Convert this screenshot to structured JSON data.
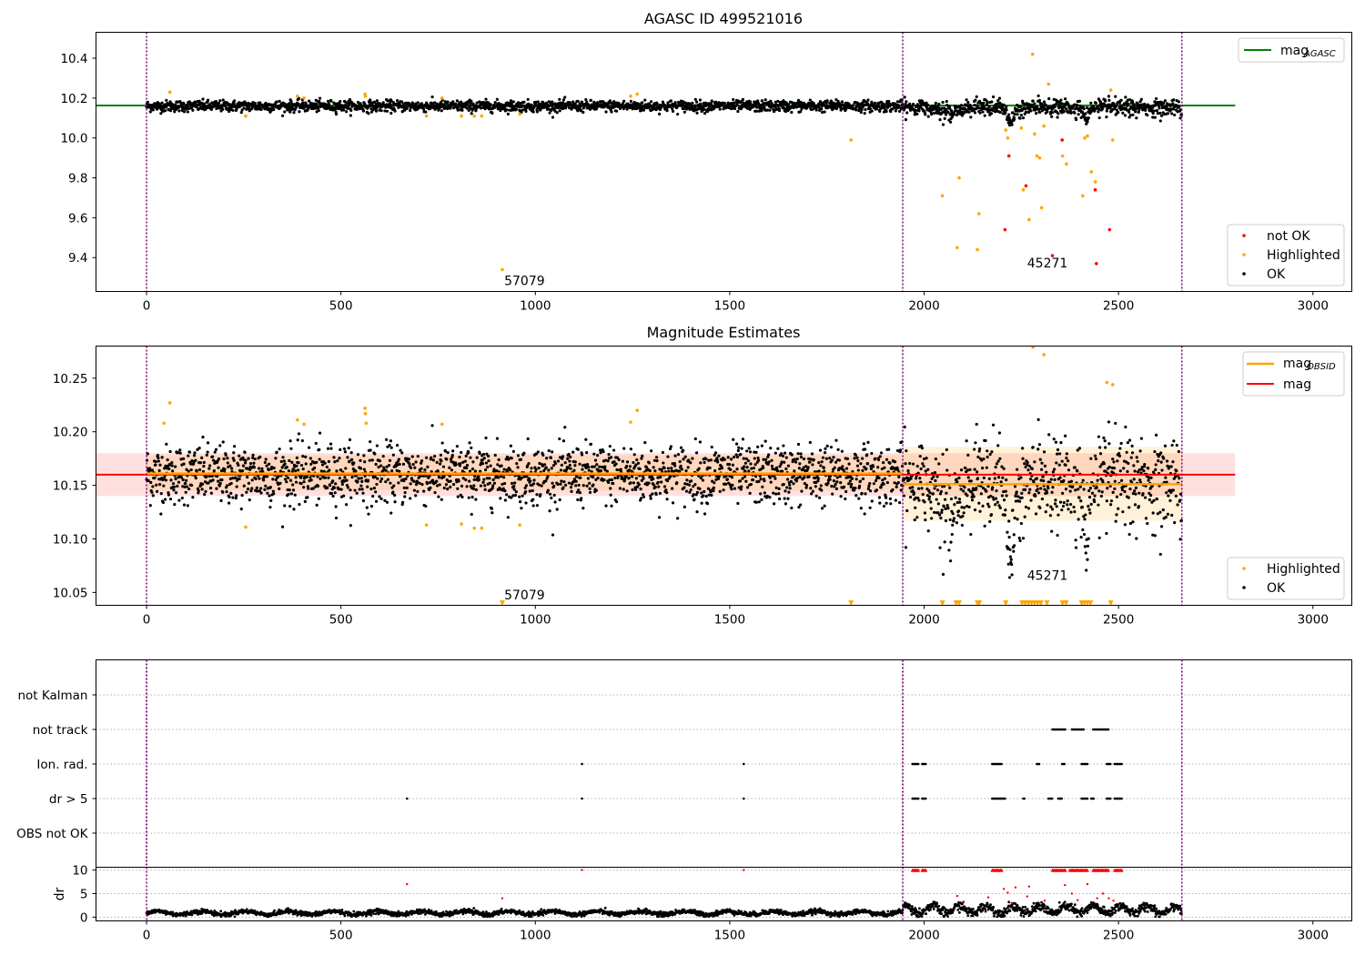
{
  "chart_data": [
    {
      "type": "scatter",
      "title": "AGASC ID 499521016",
      "xlim": [
        -130,
        3100
      ],
      "ylim": [
        9.23,
        10.53
      ],
      "x_ticks": [
        0,
        500,
        1000,
        1500,
        2000,
        2500,
        3000
      ],
      "y_ticks": [
        9.4,
        9.6,
        9.8,
        10.0,
        10.2,
        10.4
      ],
      "obsid_boundaries": [
        0,
        1945,
        2663
      ],
      "grid": false,
      "legend": {
        "position": "top-right",
        "line_entries": [
          {
            "label": "mag",
            "subscript": "AGASC",
            "color": "#008000"
          }
        ]
      },
      "legend_lower": {
        "position": "bottom-right",
        "entries": [
          {
            "label": "not OK",
            "color": "#ff0000"
          },
          {
            "label": "Highlighted",
            "color": "#ffa500"
          },
          {
            "label": "OK",
            "color": "#000000"
          }
        ]
      },
      "series": [
        {
          "name": "mag",
          "subscript": "AGASC",
          "style": "line",
          "color": "#008000",
          "x": [
            -130,
            2800
          ],
          "y": [
            10.163,
            10.163
          ]
        },
        {
          "name": "OK",
          "style": "points",
          "color": "#000000",
          "note": "dense band around 10.16 from x=0 to 2663 (~2600 points)"
        },
        {
          "name": "Highlighted",
          "style": "points",
          "color": "#ffa500",
          "x": [
            60,
            255,
            388,
            405,
            562,
            563,
            720,
            760,
            810,
            843,
            862,
            915,
            960,
            1245,
            1262,
            1812,
            2047,
            2085,
            2090,
            2137,
            2141,
            2210,
            2215,
            2250,
            2255,
            2270,
            2279,
            2284,
            2290,
            2297,
            2302,
            2308,
            2320,
            2356,
            2366,
            2408,
            2413,
            2420,
            2430,
            2440,
            2480,
            2485
          ],
          "y": [
            10.23,
            10.11,
            10.21,
            10.2,
            10.22,
            10.21,
            10.11,
            10.2,
            10.11,
            10.11,
            10.11,
            9.34,
            10.12,
            10.21,
            10.22,
            9.99,
            9.71,
            9.45,
            9.8,
            9.44,
            9.62,
            10.04,
            10.0,
            10.05,
            9.74,
            9.59,
            10.42,
            10.02,
            9.91,
            9.9,
            9.65,
            10.06,
            10.27,
            9.91,
            9.87,
            9.71,
            10.0,
            10.01,
            9.83,
            9.78,
            10.24,
            9.99
          ]
        },
        {
          "name": "not OK",
          "style": "points",
          "color": "#ff0000",
          "x": [
            2208,
            2218,
            2262,
            2330,
            2355,
            2440,
            2443,
            2477
          ],
          "y": [
            9.54,
            9.91,
            9.76,
            9.41,
            9.99,
            9.74,
            9.37,
            9.54
          ]
        }
      ],
      "annotations": [
        {
          "text": "57079",
          "x": 920,
          "y": 9.28
        },
        {
          "text": "45271",
          "x": 2265,
          "y": 9.37
        }
      ]
    },
    {
      "type": "scatter",
      "title": "Magnitude Estimates",
      "xlim": [
        -130,
        3100
      ],
      "ylim": [
        10.038,
        10.28
      ],
      "x_ticks": [
        0,
        500,
        1000,
        1500,
        2000,
        2500,
        3000
      ],
      "y_ticks": [
        10.05,
        10.1,
        10.15,
        10.2,
        10.25
      ],
      "obsid_boundaries": [
        0,
        1945,
        2663
      ],
      "grid": false,
      "legend": {
        "position": "top-right",
        "line_entries": [
          {
            "label": "mag",
            "subscript": "OBSID",
            "color": "#ffa500"
          },
          {
            "label": "mag",
            "subscript": "",
            "color": "#ff0000"
          }
        ]
      },
      "legend_lower": {
        "position": "bottom-right",
        "entries": [
          {
            "label": "Highlighted",
            "color": "#ffa500"
          },
          {
            "label": "OK",
            "color": "#000000"
          }
        ]
      },
      "bands": [
        {
          "x": [
            -130,
            2800
          ],
          "y": [
            10.14,
            10.18
          ],
          "color": "#ff0000",
          "opacity": 0.12
        },
        {
          "x": [
            0,
            1945
          ],
          "y": [
            10.145,
            10.178
          ],
          "color": "#ffa500",
          "opacity": 0.15
        },
        {
          "x": [
            1945,
            2663
          ],
          "y": [
            10.117,
            10.186
          ],
          "color": "#ffa500",
          "opacity": 0.15
        }
      ],
      "series": [
        {
          "name": "mag",
          "style": "line",
          "color": "#ff0000",
          "x": [
            -130,
            2800
          ],
          "y": [
            10.16,
            10.16
          ]
        },
        {
          "name": "mag",
          "subscript": "OBSID",
          "style": "segments",
          "color": "#ffa500",
          "segments": [
            {
              "x": [
                0,
                1945
              ],
              "y": [
                10.161,
                10.161
              ]
            },
            {
              "x": [
                1945,
                2663
              ],
              "y": [
                10.151,
                10.151
              ]
            }
          ]
        },
        {
          "name": "OK",
          "style": "points",
          "color": "#000000",
          "note": "dense band 10.12–10.20 from x=0 to 2663"
        },
        {
          "name": "Highlighted",
          "style": "points",
          "color": "#ffa500",
          "x": [
            45,
            60,
            255,
            388,
            405,
            562,
            563,
            565,
            720,
            760,
            810,
            843,
            862,
            960,
            1245,
            1262,
            2280,
            2308,
            2470,
            2485
          ],
          "y": [
            10.208,
            10.227,
            10.111,
            10.211,
            10.207,
            10.222,
            10.217,
            10.208,
            10.113,
            10.207,
            10.114,
            10.11,
            10.11,
            10.113,
            10.209,
            10.22,
            10.279,
            10.272,
            10.246,
            10.244
          ]
        },
        {
          "name": "Highlighted (below axis)",
          "style": "triangles-down",
          "color": "#ffa500",
          "x": [
            915,
            1812,
            2047,
            2082,
            2090,
            2137,
            2142,
            2210,
            2252,
            2260,
            2268,
            2276,
            2284,
            2292,
            2300,
            2316,
            2356,
            2365,
            2405,
            2412,
            2420,
            2428,
            2480
          ],
          "y": [
            10.04,
            10.04,
            10.04,
            10.04,
            10.04,
            10.04,
            10.04,
            10.04,
            10.04,
            10.04,
            10.04,
            10.04,
            10.04,
            10.04,
            10.04,
            10.04,
            10.04,
            10.04,
            10.04,
            10.04,
            10.04,
            10.04,
            10.04
          ]
        }
      ],
      "annotations": [
        {
          "text": "57079",
          "x": 920,
          "y": 10.047
        },
        {
          "text": "45271",
          "x": 2265,
          "y": 10.065
        }
      ]
    },
    {
      "type": "scatter",
      "title": "",
      "xlim": [
        -130,
        3100
      ],
      "category_axis": {
        "labels": [
          "not Kalman",
          "not track",
          "Ion. rad.",
          "dr > 5",
          "OBS not OK"
        ],
        "grid": "dotted"
      },
      "obsid_boundaries": [
        0,
        1945,
        2663
      ],
      "flags": {
        "not track": {
          "x_ranges": [
            [
              2330,
              2365
            ],
            [
              2380,
              2412
            ],
            [
              2435,
              2475
            ]
          ]
        },
        "Ion. rad.": {
          "x": [
            1120,
            1536
          ],
          "x_ranges": [
            [
              1970,
              1985
            ],
            [
              1995,
              2005
            ],
            [
              2175,
              2200
            ],
            [
              2290,
              2296
            ],
            [
              2355,
              2362
            ],
            [
              2405,
              2420
            ],
            [
              2470,
              2480
            ],
            [
              2490,
              2510
            ]
          ]
        },
        "dr > 5": {
          "x": [
            670,
            1120,
            1536
          ],
          "x_ranges": [
            [
              1970,
              1985
            ],
            [
              1995,
              2005
            ],
            [
              2175,
              2210
            ],
            [
              2255,
              2260
            ],
            [
              2320,
              2330
            ],
            [
              2345,
              2355
            ],
            [
              2405,
              2420
            ],
            [
              2430,
              2436
            ],
            [
              2470,
              2480
            ],
            [
              2490,
              2510
            ]
          ]
        }
      }
    },
    {
      "type": "scatter",
      "title": "",
      "ylabel": "dr",
      "xlim": [
        -130,
        3100
      ],
      "ylim": [
        -0.8,
        10.6
      ],
      "x_ticks": [
        0,
        500,
        1000,
        1500,
        2000,
        2500,
        3000
      ],
      "y_ticks": [
        0,
        5,
        10
      ],
      "obsid_boundaries": [
        0,
        1945,
        2663
      ],
      "series": [
        {
          "name": "dr",
          "style": "points",
          "color": "#000000",
          "note": "continuous band ~0.3–1.5 from x=0 to 1945, ~0.5–3 from 1945 to 2663"
        },
        {
          "name": "dr > 5",
          "style": "points",
          "color": "#ff0000",
          "x": [
            670,
            915,
            1120,
            1536,
            2085,
            2100,
            2165,
            2205,
            2215,
            2225,
            2235,
            2265,
            2270,
            2310,
            2362,
            2380,
            2395,
            2420,
            2445,
            2460,
            2475,
            2487
          ],
          "y": [
            7.0,
            4.0,
            10,
            10,
            4.5,
            3.2,
            4.2,
            6.0,
            5.2,
            3.0,
            6.3,
            4.4,
            6.5,
            3.5,
            6.8,
            5.0,
            3.6,
            7.0,
            4.0,
            5.0,
            4.0,
            3.5
          ]
        },
        {
          "name": "dr clipped",
          "style": "triangles-up",
          "color": "#ff0000",
          "x_ranges": [
            [
              1970,
              1985
            ],
            [
              1995,
              2005
            ],
            [
              2175,
              2200
            ],
            [
              2330,
              2365
            ],
            [
              2375,
              2420
            ],
            [
              2435,
              2475
            ],
            [
              2490,
              2510
            ]
          ],
          "y": 10
        }
      ]
    }
  ]
}
